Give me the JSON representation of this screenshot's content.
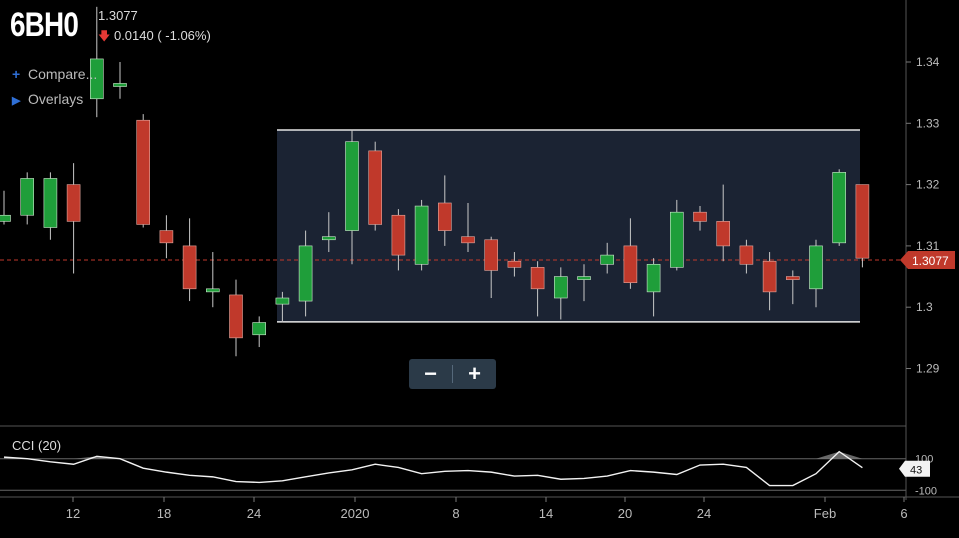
{
  "header": {
    "symbol": "6BH0",
    "price": "1.3077",
    "change": "0.0140 ( -1.06%)"
  },
  "menu": {
    "compare_label": "Compare...",
    "overlays_label": "Overlays"
  },
  "zoom": {
    "minus": "−",
    "plus": "+"
  },
  "colors": {
    "up": "#1f9e3a",
    "down": "#c0392b",
    "selection_fill": "#1b2333",
    "price_tag": "#c0392b",
    "guide_line": "#c0392b"
  },
  "chart_data": {
    "type": "candlestick",
    "price_axis": {
      "ylim": [
        1.2855,
        1.3478
      ],
      "ticks": [
        "1.34",
        "1.33",
        "1.32",
        "1.31",
        "1.3",
        "1.29"
      ]
    },
    "last_price": "1.3077",
    "x_ticks": [
      "12",
      "18",
      "24",
      "2020",
      "8",
      "14",
      "20",
      "24",
      "Feb",
      "6"
    ],
    "selection_range": {
      "high": 1.3289,
      "low": 1.2976
    },
    "candles": [
      {
        "o": 1.314,
        "h": 1.319,
        "l": 1.3135,
        "c": 1.315
      },
      {
        "o": 1.315,
        "h": 1.322,
        "l": 1.3135,
        "c": 1.321
      },
      {
        "o": 1.313,
        "h": 1.322,
        "l": 1.311,
        "c": 1.321
      },
      {
        "o": 1.32,
        "h": 1.3235,
        "l": 1.3055,
        "c": 1.314
      },
      {
        "o": 1.334,
        "h": 1.349,
        "l": 1.331,
        "c": 1.3405
      },
      {
        "o": 1.336,
        "h": 1.34,
        "l": 1.334,
        "c": 1.3365
      },
      {
        "o": 1.3305,
        "h": 1.3315,
        "l": 1.313,
        "c": 1.3135
      },
      {
        "o": 1.3125,
        "h": 1.315,
        "l": 1.308,
        "c": 1.3105
      },
      {
        "o": 1.31,
        "h": 1.3145,
        "l": 1.301,
        "c": 1.303
      },
      {
        "o": 1.3025,
        "h": 1.309,
        "l": 1.3,
        "c": 1.303
      },
      {
        "o": 1.302,
        "h": 1.3045,
        "l": 1.292,
        "c": 1.295
      },
      {
        "o": 1.2955,
        "h": 1.2985,
        "l": 1.2935,
        "c": 1.2975
      },
      {
        "o": 1.3005,
        "h": 1.3025,
        "l": 1.2975,
        "c": 1.3015
      },
      {
        "o": 1.301,
        "h": 1.3125,
        "l": 1.2985,
        "c": 1.31
      },
      {
        "o": 1.311,
        "h": 1.3155,
        "l": 1.309,
        "c": 1.3115
      },
      {
        "o": 1.3125,
        "h": 1.329,
        "l": 1.307,
        "c": 1.327
      },
      {
        "o": 1.3255,
        "h": 1.327,
        "l": 1.3125,
        "c": 1.3135
      },
      {
        "o": 1.315,
        "h": 1.316,
        "l": 1.306,
        "c": 1.3085
      },
      {
        "o": 1.307,
        "h": 1.3175,
        "l": 1.306,
        "c": 1.3165
      },
      {
        "o": 1.317,
        "h": 1.3215,
        "l": 1.31,
        "c": 1.3125
      },
      {
        "o": 1.3115,
        "h": 1.317,
        "l": 1.309,
        "c": 1.3105
      },
      {
        "o": 1.311,
        "h": 1.3115,
        "l": 1.3015,
        "c": 1.306
      },
      {
        "o": 1.3075,
        "h": 1.309,
        "l": 1.305,
        "c": 1.3065
      },
      {
        "o": 1.3065,
        "h": 1.3075,
        "l": 1.2985,
        "c": 1.303
      },
      {
        "o": 1.3015,
        "h": 1.3065,
        "l": 1.298,
        "c": 1.305
      },
      {
        "o": 1.3045,
        "h": 1.307,
        "l": 1.301,
        "c": 1.305
      },
      {
        "o": 1.307,
        "h": 1.3105,
        "l": 1.3055,
        "c": 1.3085
      },
      {
        "o": 1.31,
        "h": 1.3145,
        "l": 1.303,
        "c": 1.304
      },
      {
        "o": 1.3025,
        "h": 1.308,
        "l": 1.2985,
        "c": 1.307
      },
      {
        "o": 1.3065,
        "h": 1.3175,
        "l": 1.306,
        "c": 1.3155
      },
      {
        "o": 1.3155,
        "h": 1.3165,
        "l": 1.3125,
        "c": 1.314
      },
      {
        "o": 1.314,
        "h": 1.32,
        "l": 1.3075,
        "c": 1.31
      },
      {
        "o": 1.31,
        "h": 1.311,
        "l": 1.3055,
        "c": 1.307
      },
      {
        "o": 1.3075,
        "h": 1.309,
        "l": 1.2995,
        "c": 1.3025
      },
      {
        "o": 1.305,
        "h": 1.306,
        "l": 1.3005,
        "c": 1.3045
      },
      {
        "o": 1.303,
        "h": 1.311,
        "l": 1.3,
        "c": 1.31
      },
      {
        "o": 1.3105,
        "h": 1.3225,
        "l": 1.31,
        "c": 1.322
      },
      {
        "o": 1.32,
        "h": 1.32,
        "l": 1.3065,
        "c": 1.308
      }
    ],
    "indicator": {
      "name": "CCI (20)",
      "ylim": [
        -130,
        145
      ],
      "ticks": [
        "100",
        "-100"
      ],
      "last_value": "43",
      "values": [
        110,
        100,
        80,
        65,
        115,
        100,
        40,
        15,
        -5,
        -15,
        -45,
        -50,
        -40,
        -15,
        10,
        30,
        65,
        45,
        5,
        20,
        25,
        15,
        -10,
        -5,
        -30,
        -25,
        -10,
        25,
        15,
        0,
        60,
        65,
        45,
        -70,
        -70,
        5,
        145,
        43
      ]
    }
  }
}
